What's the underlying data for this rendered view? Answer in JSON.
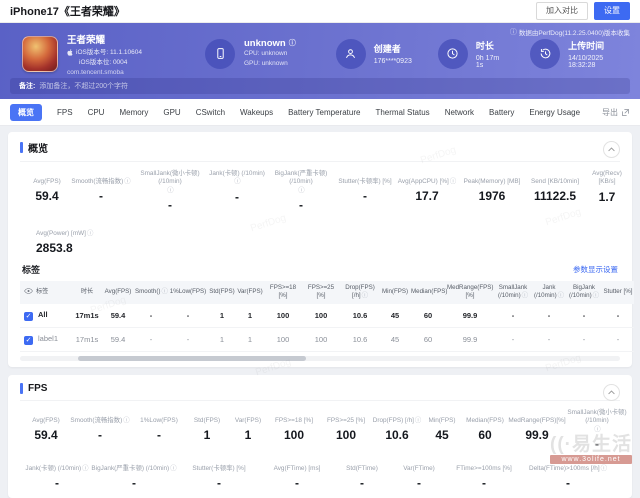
{
  "topbar": {
    "title": "iPhone17《王者荣耀》",
    "compare_label": "加入对比",
    "settings_label": "设置"
  },
  "banner": {
    "app": {
      "name": "王者荣耀",
      "ios_version": "iOS版本号: 11.1.10604",
      "ios_build": "iOS版本位: 0004",
      "bundle": "com.tencent.smoba"
    },
    "device": {
      "name": "unknown",
      "cpu": "CPU: unknown",
      "gpu": "GPU: unknown"
    },
    "metas": [
      {
        "icon": "user",
        "label": "创建者",
        "value": "176****0923"
      },
      {
        "icon": "clock",
        "label": "时长",
        "value": "0h 17m 1s"
      },
      {
        "icon": "history",
        "label": "上传时间",
        "value": "14/10/2025 18:32:28"
      }
    ],
    "collect_note": "数据由PerfDog(11.2.25.0400)版本收集",
    "remark_label": "备注:",
    "remark_text": "添加备注，不超过200个字符"
  },
  "tabbar": {
    "tabs": [
      "概览",
      "FPS",
      "CPU",
      "Memory",
      "GPU",
      "CSwitch",
      "Wakeups",
      "Battery Temperature",
      "Thermal Status",
      "Network",
      "Battery",
      "Energy Usage"
    ],
    "active_index": 0,
    "export_label": "导出"
  },
  "overview": {
    "title": "概览",
    "stats_row1": [
      {
        "label": "Avg(FPS)",
        "value": "59.4"
      },
      {
        "label": "Smooth(流畅指数)",
        "info": true,
        "value": "-"
      },
      {
        "label": "SmallJank(微小卡顿) (/10min)",
        "info": true,
        "value": "-"
      },
      {
        "label": "Jank(卡顿) (/10min)",
        "info": true,
        "value": "-"
      },
      {
        "label": "BigJank(严重卡顿) (/10min)",
        "info": true,
        "value": "-"
      },
      {
        "label": "Stutter(卡顿率) [%]",
        "value": "-"
      },
      {
        "label": "Avg(AppCPU) [%]",
        "info": true,
        "value": "17.7"
      },
      {
        "label": "Peak(Memory) [MB]",
        "value": "1976"
      },
      {
        "label": "Send [KB/10min]",
        "value": "11122.5"
      },
      {
        "label": "Avg(Recv) [KB/s]",
        "value": "1.7"
      }
    ],
    "stats_row2": [
      {
        "label": "Avg(Power) [mW]",
        "info": true,
        "value": "2853.8"
      }
    ],
    "tags": {
      "title": "标签",
      "settings_link": "参数显示设置",
      "table": {
        "headers": [
          {
            "text": "标签"
          },
          {
            "text": "时长"
          },
          {
            "text": "Avg(FPS)"
          },
          {
            "text": "Smooth()",
            "info": true
          },
          {
            "text": "1%Low(FPS)"
          },
          {
            "text": "Std(FPS)"
          },
          {
            "text": "Var(FPS)"
          },
          {
            "text": "FPS>=18 [%]"
          },
          {
            "text": "FPS>=25 [%]"
          },
          {
            "text": "Drop(FPS) [/h]",
            "info": true
          },
          {
            "text": "Min(FPS)"
          },
          {
            "text": "Median(FPS)"
          },
          {
            "text": "MedRange(FPS)[%]"
          },
          {
            "text": "SmallJank (/10min)",
            "info": true
          },
          {
            "text": "Jank (/10min)",
            "info": true
          },
          {
            "text": "BigJank (/10min)",
            "info": true
          },
          {
            "text": "Stutter [%]"
          }
        ],
        "rows": [
          {
            "label": "All",
            "checked": true,
            "values": [
              "17m1s",
              "59.4",
              "-",
              "-",
              "1",
              "1",
              "100",
              "100",
              "10.6",
              "45",
              "60",
              "99.9",
              "-",
              "-",
              "-",
              "-"
            ]
          },
          {
            "label": "label1",
            "checked": true,
            "values": [
              "17m1s",
              "59.4",
              "-",
              "-",
              "1",
              "1",
              "100",
              "100",
              "10.6",
              "45",
              "60",
              "99.9",
              "-",
              "-",
              "-",
              "-"
            ]
          }
        ]
      }
    }
  },
  "fps": {
    "title": "FPS",
    "stats_row1": [
      {
        "label": "Avg(FPS)",
        "value": "59.4"
      },
      {
        "label": "Smooth(流畅指数)",
        "info": true,
        "value": "-"
      },
      {
        "label": "1%Low(FPS)",
        "value": "-"
      },
      {
        "label": "Std(FPS)",
        "value": "1"
      },
      {
        "label": "Var(FPS)",
        "value": "1"
      },
      {
        "label": "FPS>=18 [%]",
        "value": "100"
      },
      {
        "label": "FPS>=25 [%]",
        "value": "100"
      },
      {
        "label": "Drop(FPS) [/h]",
        "info": true,
        "value": "10.6"
      },
      {
        "label": "Min(FPS)",
        "value": "45"
      },
      {
        "label": "Median(FPS)",
        "value": "60"
      },
      {
        "label": "MedRange(FPS)[%]",
        "value": "99.9"
      },
      {
        "label": "SmallJank(微小卡顿) (/10min)",
        "info": true,
        "value": "-"
      }
    ],
    "stats_row2": [
      {
        "label": "Jank(卡顿) (/10min)",
        "info": true,
        "value": "-"
      },
      {
        "label": "BigJank(严重卡顿) (/10min)",
        "info": true,
        "value": "-"
      },
      {
        "label": "Stutter(卡顿率) [%]",
        "value": "-"
      },
      {
        "label": "Avg(FTime) [ms]",
        "value": "-"
      },
      {
        "label": "Std(FTime)",
        "value": "-"
      },
      {
        "label": "Var(FTime)",
        "value": "-"
      },
      {
        "label": "FTime>=100ms [%]",
        "value": "-"
      },
      {
        "label": "Delta(FTime)>100ms [/h]",
        "info": true,
        "value": "-"
      }
    ]
  },
  "watermarks": {
    "perfdog": "PerfDog",
    "site_brand": "易生活",
    "site_url": "www.3olife.net"
  }
}
